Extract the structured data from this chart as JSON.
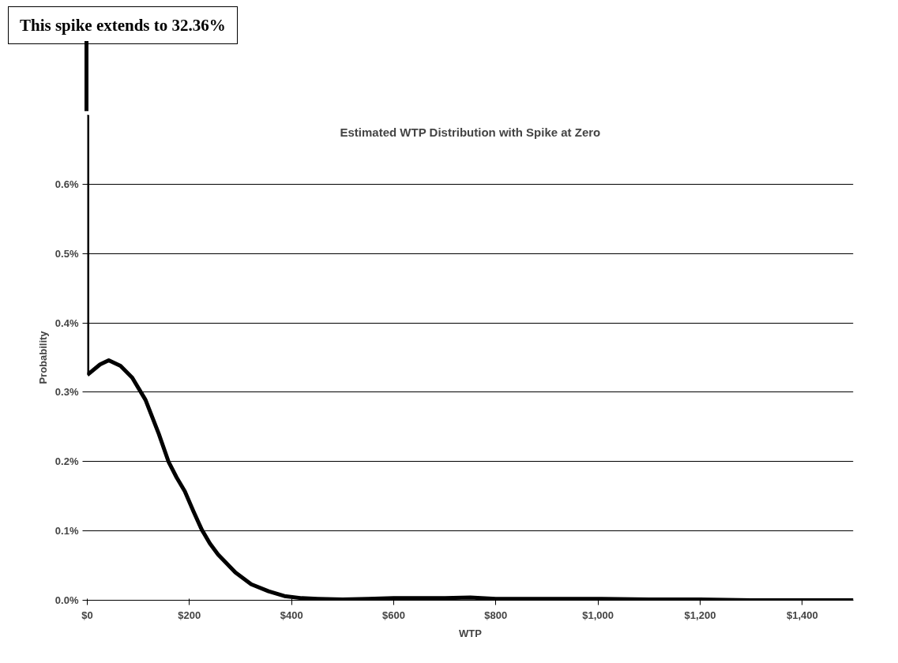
{
  "chart_data": {
    "type": "line",
    "title": "Estimated WTP Distribution with Spike at Zero",
    "xlabel": "WTP",
    "ylabel": "Probability",
    "x": [
      0,
      25,
      42,
      65,
      88,
      114,
      140,
      159,
      175,
      191,
      208,
      224,
      240,
      256,
      290,
      321,
      355,
      386,
      420,
      451,
      500,
      550,
      600,
      650,
      700,
      750,
      800,
      900,
      1000,
      1100,
      1200,
      1300,
      1400,
      1500
    ],
    "series": [
      {
        "color": "#000000",
        "values": [
          0.325,
          0.34,
          0.346,
          0.338,
          0.321,
          0.289,
          0.24,
          0.2,
          0.177,
          0.157,
          0.128,
          0.102,
          0.082,
          0.066,
          0.04,
          0.023,
          0.013,
          0.006,
          0.003,
          0.002,
          0.001,
          0.002,
          0.003,
          0.003,
          0.003,
          0.004,
          0.002,
          0.002,
          0.002,
          0.001,
          0.001,
          0,
          0,
          0
        ]
      }
    ],
    "xlim": [
      0,
      1500
    ],
    "xticks": [
      {
        "value": 0,
        "label": "$0"
      },
      {
        "value": 200,
        "label": "$200"
      },
      {
        "value": 400,
        "label": "$400"
      },
      {
        "value": 600,
        "label": "$600"
      },
      {
        "value": 800,
        "label": "$800"
      },
      {
        "value": 1000,
        "label": "$1,000"
      },
      {
        "value": 1200,
        "label": "$1,200"
      },
      {
        "value": 1400,
        "label": "$1,400"
      }
    ],
    "ylim": [
      0,
      0.7
    ],
    "yticks": [
      {
        "value": 0,
        "label": "0.0%"
      },
      {
        "value": 0.1,
        "label": "0.1%"
      },
      {
        "value": 0.2,
        "label": "0.2%"
      },
      {
        "value": 0.3,
        "label": "0.3%"
      },
      {
        "value": 0.4,
        "label": "0.4%"
      },
      {
        "value": 0.5,
        "label": "0.5%"
      },
      {
        "value": 0.6,
        "label": "0.6%"
      }
    ],
    "grid": "y",
    "marker": "none",
    "line_style": "solid",
    "annotations": [
      "This spike extends to 32.36%"
    ]
  }
}
